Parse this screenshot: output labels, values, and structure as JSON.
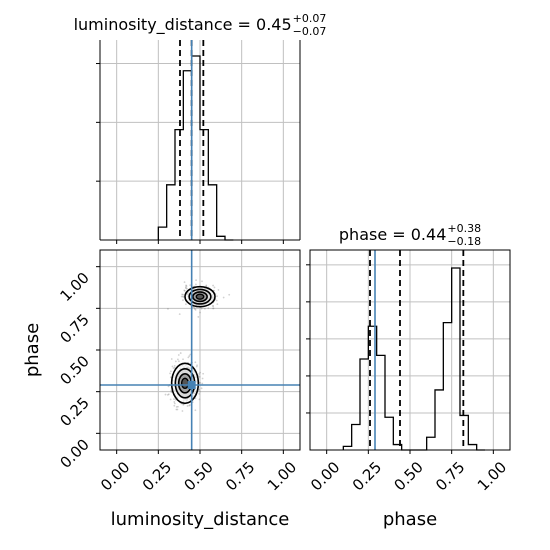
{
  "chart_data": {
    "type": "corner",
    "parameters": [
      "luminosity_distance",
      "phase"
    ],
    "truths": {
      "luminosity_distance": 0.45,
      "phase": 0.29
    },
    "colors": {
      "truth": "#4682b4",
      "hist": "#000000",
      "grid": "#c0c0c0"
    },
    "marginals": [
      {
        "parameter": "luminosity_distance",
        "title_name": "luminosity_distance",
        "title_value": "0.45",
        "title_plus": "+0.07",
        "title_minus": "−0.07",
        "bin_edges": [
          0.25,
          0.3,
          0.35,
          0.4,
          0.45,
          0.5,
          0.55,
          0.6,
          0.65,
          0.7
        ],
        "counts": [
          0.07,
          0.3,
          0.6,
          0.92,
          1.0,
          0.6,
          0.3,
          0.02,
          0.0
        ],
        "quantiles": [
          0.38,
          0.45,
          0.52
        ],
        "xlim": [
          -0.1,
          1.1
        ]
      },
      {
        "parameter": "phase",
        "title_name": "phase",
        "title_value": "0.44",
        "title_plus": "+0.38",
        "title_minus": "−0.18",
        "bin_edges": [
          0.1,
          0.15,
          0.2,
          0.25,
          0.3,
          0.35,
          0.4,
          0.45,
          0.5,
          0.55,
          0.6,
          0.65,
          0.7,
          0.75,
          0.8,
          0.85,
          0.9,
          0.95
        ],
        "counts": [
          0.02,
          0.14,
          0.5,
          0.68,
          0.52,
          0.18,
          0.03,
          0.0,
          0.0,
          0.0,
          0.07,
          0.33,
          0.7,
          1.0,
          0.19,
          0.03,
          0.0
        ],
        "quantiles": [
          0.26,
          0.44,
          0.82
        ],
        "xlim": [
          -0.1,
          1.1
        ]
      }
    ],
    "joint": {
      "x_parameter": "luminosity_distance",
      "y_parameter": "phase",
      "xlim": [
        -0.1,
        1.1
      ],
      "ylim": [
        -0.1,
        1.1
      ],
      "modes": [
        {
          "x": 0.5,
          "y": 0.82,
          "sx": 0.045,
          "sy": 0.03
        },
        {
          "x": 0.41,
          "y": 0.3,
          "sx": 0.04,
          "sy": 0.06
        }
      ]
    },
    "xticks": [
      "0.00",
      "0.25",
      "0.50",
      "0.75",
      "1.00"
    ],
    "yticks": [
      "0.00",
      "0.25",
      "0.50",
      "0.75",
      "1.00"
    ],
    "tick_values": [
      0,
      0.25,
      0.5,
      0.75,
      1.0
    ],
    "xlabels": [
      "luminosity_distance",
      "phase"
    ],
    "ylabel": "phase"
  }
}
